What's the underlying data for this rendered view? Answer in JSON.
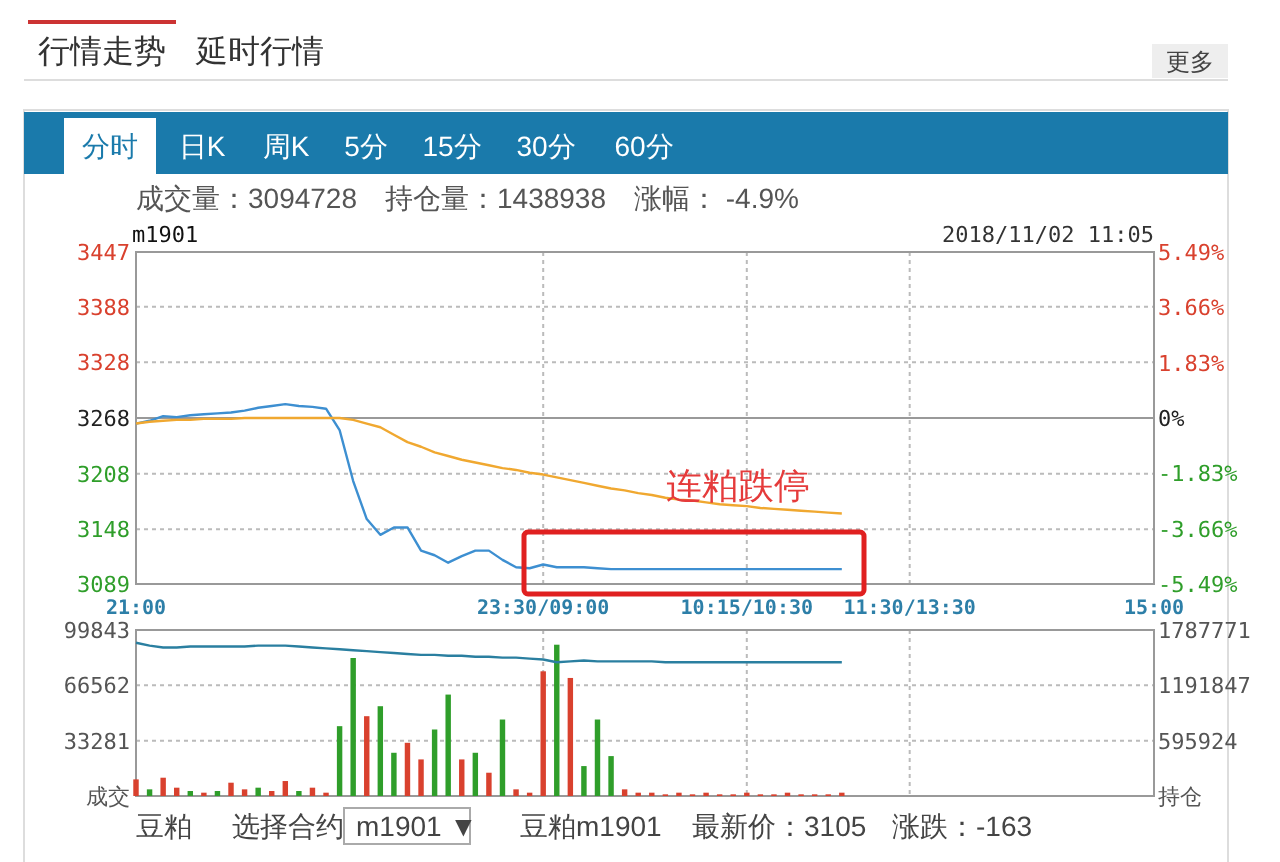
{
  "chart_data": [
    {
      "type": "line",
      "title": "m1901",
      "subtitle": "成交量：3094728　持仓量：1438938　涨幅： -4.9%",
      "annotations": [
        "行情走势",
        "延时行情",
        "更多",
        "分时",
        "日K",
        "周K",
        "5分",
        "15分",
        "30分",
        "60分",
        "2018/11/02 11:05",
        "连粕跌停"
      ],
      "categories": [
        "21:00",
        null,
        null,
        null,
        null,
        null,
        null,
        null,
        null,
        null,
        null,
        null,
        null,
        null,
        null,
        null,
        null,
        null,
        null,
        null,
        null,
        null,
        null,
        null,
        null,
        null,
        null,
        null,
        null,
        null,
        "23:30/09:00",
        null,
        null,
        null,
        null,
        null,
        null,
        null,
        null,
        null,
        null,
        null,
        null,
        null,
        null,
        "10:15/10:30",
        null,
        null,
        null,
        null,
        null,
        null,
        null,
        null,
        null,
        null,
        null,
        "11:30/13:30",
        null,
        null,
        null,
        null,
        null,
        null,
        null,
        null,
        null,
        null,
        null,
        null,
        null,
        null,
        null,
        null,
        null,
        "15:00"
      ],
      "series": [
        {
          "color": "#3d8fd1",
          "values": [
            3262,
            3265,
            3270,
            3269,
            3271,
            3272,
            3273,
            3274,
            3276,
            3279,
            3281,
            3283,
            3281,
            3280,
            3278,
            3255,
            3200,
            3159,
            3142,
            3150,
            3150,
            3125,
            3120,
            3112,
            3119,
            3125,
            3125,
            3115,
            3107,
            3106,
            3110,
            3107,
            3107,
            3107,
            3106,
            3105,
            3105,
            3105,
            3105,
            3105,
            3105,
            3105,
            3105,
            3105,
            3105,
            3105,
            3105,
            3105,
            3105,
            3105,
            3105,
            3105,
            3105,
            null,
            null,
            null,
            null,
            null,
            null,
            null,
            null,
            null,
            null,
            null,
            null,
            null,
            null,
            null,
            null,
            null,
            null,
            null,
            null,
            null,
            null,
            null
          ]
        },
        {
          "color": "#f0a830",
          "values": [
            3262,
            3264,
            3265,
            3266,
            3266,
            3267,
            3267,
            3267,
            3268,
            3268,
            3268,
            3268,
            3268,
            3268,
            3268,
            3268,
            3266,
            3262,
            3258,
            3250,
            3242,
            3237,
            3231,
            3227,
            3223,
            3220,
            3217,
            3214,
            3212,
            3209,
            3207,
            3204,
            3201,
            3198,
            3195,
            3192,
            3190,
            3187,
            3185,
            3182,
            3180,
            3179,
            3177,
            3175,
            3174,
            3173,
            3171,
            3170,
            3169,
            3168,
            3167,
            3166,
            3165,
            null,
            null,
            null,
            null,
            null,
            null,
            null,
            null,
            null,
            null,
            null,
            null,
            null,
            null,
            null,
            null,
            null,
            null,
            null,
            null,
            null,
            null,
            null
          ]
        }
      ],
      "ylim": [
        3089,
        3447
      ],
      "yticks": [
        3089,
        3148,
        3208,
        3268,
        3328,
        3388,
        3447
      ],
      "y2lim": [
        -5.49,
        5.49
      ],
      "y2ticks": [
        {
          "value": -5.49,
          "label": "-5.49%"
        },
        {
          "value": -3.66,
          "label": "-3.66%"
        },
        {
          "value": -1.83,
          "label": "-1.83%"
        },
        {
          "value": 0,
          "label": "0%"
        },
        {
          "value": 1.83,
          "label": "1.83%"
        },
        {
          "value": 3.66,
          "label": "3.66%"
        },
        {
          "value": 5.49,
          "label": "5.49%"
        }
      ],
      "ref_lines": [
        {
          "axis": "y",
          "value": 3268,
          "color": "#999999"
        }
      ],
      "grid": true
    },
    {
      "type": "bar",
      "annotations": [
        "豆粕",
        "选择合约",
        "m1901 ▼",
        "豆粕m1901",
        "最新价：3105",
        "涨跌：-163"
      ],
      "categories": [
        null,
        null,
        null,
        null,
        null,
        null,
        null,
        null,
        null,
        null,
        null,
        null,
        null,
        null,
        null,
        null,
        null,
        null,
        null,
        null,
        null,
        null,
        null,
        null,
        null,
        null,
        null,
        null,
        null,
        null,
        null,
        null,
        null,
        null,
        null,
        null,
        null,
        null,
        null,
        null,
        null,
        null,
        null,
        null,
        null,
        null,
        null,
        null,
        null,
        null,
        null,
        null,
        null,
        null,
        null,
        null,
        null,
        null,
        null,
        null,
        null,
        null,
        null,
        null,
        null,
        null,
        null,
        null,
        null,
        null,
        null,
        null,
        null,
        null,
        null,
        null
      ],
      "series": [
        {
          "values": [
            10000,
            4000,
            11000,
            5000,
            3000,
            2000,
            3000,
            8000,
            4000,
            5000,
            3000,
            9000,
            3000,
            5000,
            2000,
            42000,
            83000,
            48000,
            54000,
            26000,
            32000,
            22000,
            40000,
            61000,
            22000,
            26000,
            14000,
            46000,
            4000,
            2000,
            75000,
            91000,
            71000,
            18000,
            46000,
            24000,
            4000,
            2000,
            2000,
            1000,
            2000,
            1000,
            2000,
            1000,
            1000,
            2000,
            1000,
            1000,
            2000,
            1000,
            1000,
            1000,
            2000,
            null,
            null,
            null,
            null,
            null,
            null,
            null,
            null,
            null,
            null,
            null,
            null,
            null,
            null,
            null,
            null,
            null,
            null,
            null,
            null,
            null,
            null,
            null
          ],
          "colors": [
            "#d9412e",
            "#2f9e2a",
            "#d9412e",
            "#d9412e",
            "#2f9e2a",
            "#d9412e",
            "#2f9e2a",
            "#d9412e",
            "#d9412e",
            "#2f9e2a",
            "#d9412e",
            "#d9412e",
            "#2f9e2a",
            "#d9412e",
            "#d9412e",
            "#2f9e2a",
            "#2f9e2a",
            "#d9412e",
            "#2f9e2a",
            "#2f9e2a",
            "#d9412e",
            "#d9412e",
            "#2f9e2a",
            "#2f9e2a",
            "#d9412e",
            "#2f9e2a",
            "#d9412e",
            "#2f9e2a",
            "#d9412e",
            "#d9412e",
            "#d9412e",
            "#2f9e2a",
            "#d9412e",
            "#2f9e2a",
            "#2f9e2a",
            "#2f9e2a",
            "#d9412e",
            "#d9412e",
            "#d9412e",
            "#d9412e",
            "#d9412e",
            "#d9412e",
            "#d9412e",
            "#d9412e",
            "#d9412e",
            "#d9412e",
            "#d9412e",
            "#d9412e",
            "#d9412e",
            "#d9412e",
            "#d9412e",
            "#d9412e",
            "#d9412e",
            null,
            null,
            null,
            null,
            null,
            null,
            null,
            null,
            null,
            null,
            null,
            null,
            null,
            null,
            null,
            null,
            null,
            null,
            null,
            null,
            null,
            null,
            null
          ]
        },
        {
          "type": "line",
          "axis": "y2",
          "color": "#2a7fa0",
          "values": [
            1650000,
            1620000,
            1600000,
            1600000,
            1610000,
            1610000,
            1610000,
            1610000,
            1610000,
            1620000,
            1620000,
            1620000,
            1610000,
            1600000,
            1590000,
            1580000,
            1570000,
            1560000,
            1550000,
            1540000,
            1530000,
            1520000,
            1520000,
            1510000,
            1510000,
            1500000,
            1500000,
            1490000,
            1490000,
            1480000,
            1470000,
            1440000,
            1450000,
            1460000,
            1450000,
            1450000,
            1450000,
            1450000,
            1450000,
            1440000,
            1440000,
            1440000,
            1440000,
            1440000,
            1440000,
            1440000,
            1440000,
            1440000,
            1440000,
            1440000,
            1440000,
            1440000,
            1440000,
            null,
            null,
            null,
            null,
            null,
            null,
            null,
            null,
            null,
            null,
            null,
            null,
            null,
            null,
            null,
            null,
            null,
            null,
            null,
            null,
            null,
            null,
            null
          ]
        }
      ],
      "ylim": [
        0,
        99843
      ],
      "yticks": [
        {
          "value": 0,
          "label": "成交"
        },
        33281,
        66562,
        99843
      ],
      "y2lim": [
        0,
        1787771
      ],
      "y2ticks": [
        {
          "value": 0,
          "label": "持仓"
        },
        595924,
        1191847,
        1787771
      ],
      "tick_labels": "y",
      "grid": true
    }
  ]
}
